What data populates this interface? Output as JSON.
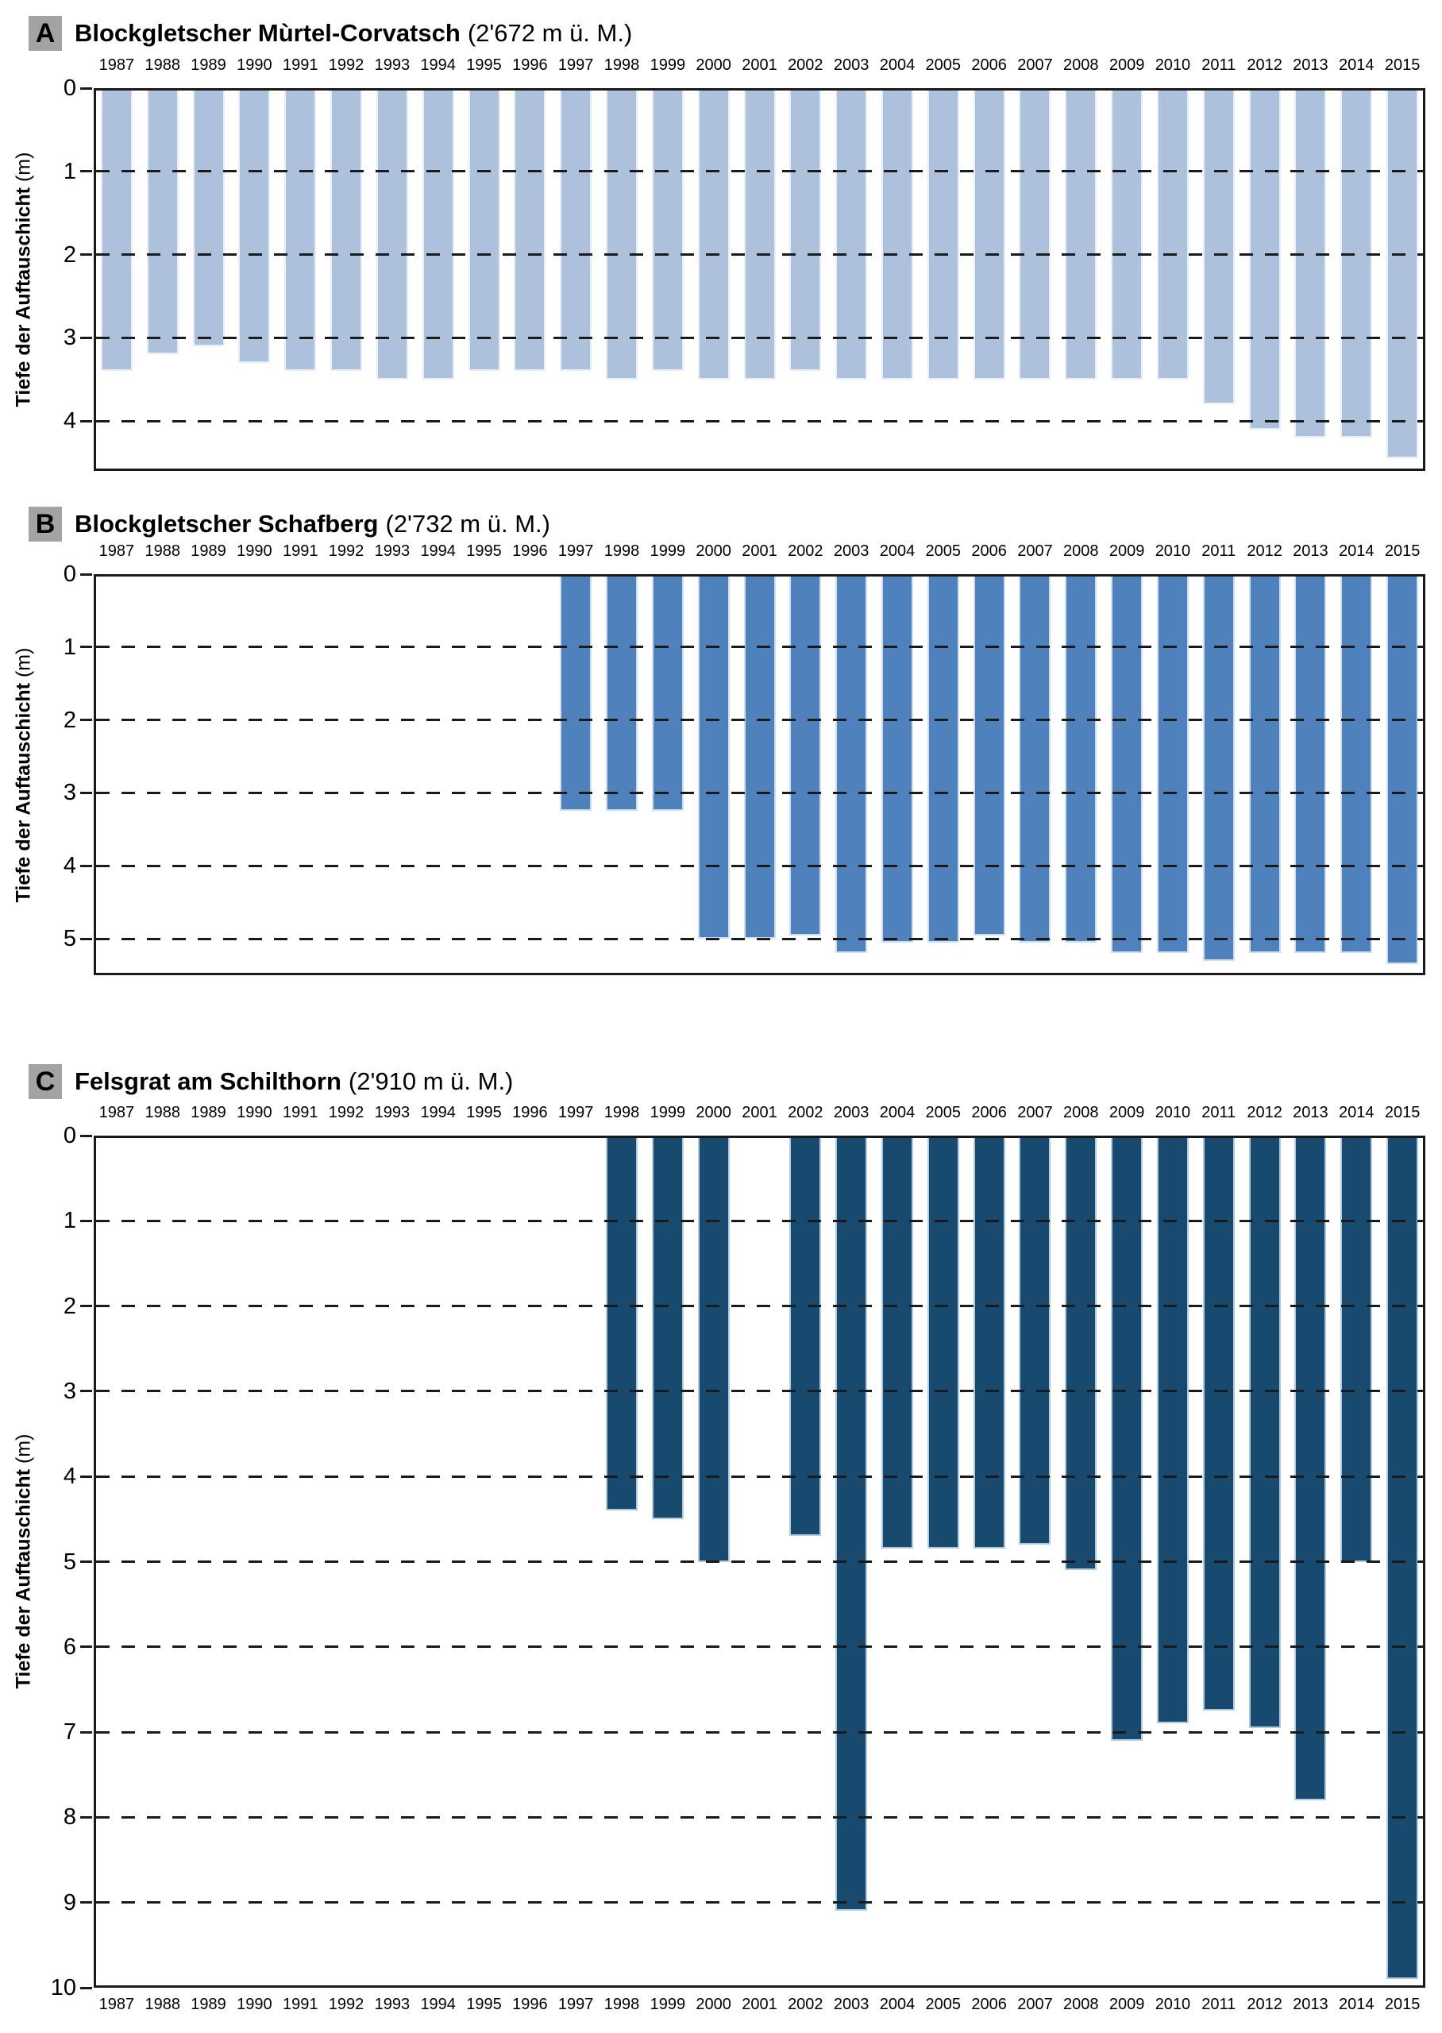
{
  "figure": {
    "background": "#ffffff",
    "y_axis_label": "Tiefe der Auftauschicht",
    "y_axis_unit": "(m)"
  },
  "chart_data": [
    {
      "type": "bar",
      "panel_label": "A",
      "title": "Blockgletscher Mùrtel-Corvatsch",
      "title_suffix": "(2'672 m ü. M.)",
      "ylabel": "Tiefe der Auftauschicht",
      "ylabel_unit": "(m)",
      "orientation": "columns hang downward from 0 (depth below surface)",
      "grid": "dashed horizontal line at every whole meter",
      "x_labels_top": true,
      "x_labels_bottom": false,
      "bar_color": "#aec1dc",
      "bar_edge_color": "#e8eef7",
      "ylim": [
        0,
        4.6
      ],
      "yticks": [
        0,
        1,
        2,
        3,
        4
      ],
      "categories": [
        1987,
        1988,
        1989,
        1990,
        1991,
        1992,
        1993,
        1994,
        1995,
        1996,
        1997,
        1998,
        1999,
        2000,
        2001,
        2002,
        2003,
        2004,
        2005,
        2006,
        2007,
        2008,
        2009,
        2010,
        2011,
        2012,
        2013,
        2014,
        2015
      ],
      "values": [
        3.4,
        3.2,
        3.1,
        3.3,
        3.4,
        3.4,
        3.5,
        3.5,
        3.4,
        3.4,
        3.4,
        3.5,
        3.4,
        3.5,
        3.5,
        3.4,
        3.5,
        3.5,
        3.5,
        3.5,
        3.5,
        3.5,
        3.5,
        3.5,
        3.8,
        4.1,
        4.2,
        4.2,
        4.45
      ]
    },
    {
      "type": "bar",
      "panel_label": "B",
      "title": "Blockgletscher Schafberg",
      "title_suffix": "(2'732 m ü. M.)",
      "ylabel": "Tiefe der Auftauschicht",
      "ylabel_unit": "(m)",
      "orientation": "columns hang downward from 0 (depth below surface)",
      "grid": "dashed horizontal line at every whole meter",
      "x_labels_top": true,
      "x_labels_bottom": false,
      "bar_color": "#4f81bd",
      "bar_edge_color": "#cfdeee",
      "ylim": [
        0,
        5.5
      ],
      "yticks": [
        0,
        1,
        2,
        3,
        4,
        5
      ],
      "categories": [
        1987,
        1988,
        1989,
        1990,
        1991,
        1992,
        1993,
        1994,
        1995,
        1996,
        1997,
        1998,
        1999,
        2000,
        2001,
        2002,
        2003,
        2004,
        2005,
        2006,
        2007,
        2008,
        2009,
        2010,
        2011,
        2012,
        2013,
        2014,
        2015
      ],
      "values": [
        null,
        null,
        null,
        null,
        null,
        null,
        null,
        null,
        null,
        null,
        3.25,
        3.25,
        3.25,
        5.0,
        5.0,
        4.95,
        5.2,
        5.05,
        5.05,
        4.95,
        5.05,
        5.05,
        5.2,
        5.2,
        5.3,
        5.2,
        5.2,
        5.2,
        5.35
      ]
    },
    {
      "type": "bar",
      "panel_label": "C",
      "title": "Felsgrat am Schilthorn",
      "title_suffix": "(2'910 m ü. M.)",
      "ylabel": "Tiefe der Auftauschicht",
      "ylabel_unit": "(m)",
      "orientation": "columns hang downward from 0 (depth below surface)",
      "grid": "dashed horizontal line at every whole meter",
      "x_labels_top": true,
      "x_labels_bottom": true,
      "bar_color": "#174a6e",
      "bar_edge_color": "#aecadf",
      "ylim": [
        0,
        10
      ],
      "yticks": [
        0,
        1,
        2,
        3,
        4,
        5,
        6,
        7,
        8,
        9,
        10
      ],
      "categories": [
        1987,
        1988,
        1989,
        1990,
        1991,
        1992,
        1993,
        1994,
        1995,
        1996,
        1997,
        1998,
        1999,
        2000,
        2001,
        2002,
        2003,
        2004,
        2005,
        2006,
        2007,
        2008,
        2009,
        2010,
        2011,
        2012,
        2013,
        2014,
        2015
      ],
      "values": [
        null,
        null,
        null,
        null,
        null,
        null,
        null,
        null,
        null,
        null,
        null,
        4.4,
        4.5,
        5.0,
        null,
        4.7,
        9.1,
        4.85,
        4.85,
        4.85,
        4.8,
        5.1,
        7.1,
        6.9,
        6.75,
        6.95,
        7.8,
        5.0,
        9.9
      ]
    }
  ]
}
